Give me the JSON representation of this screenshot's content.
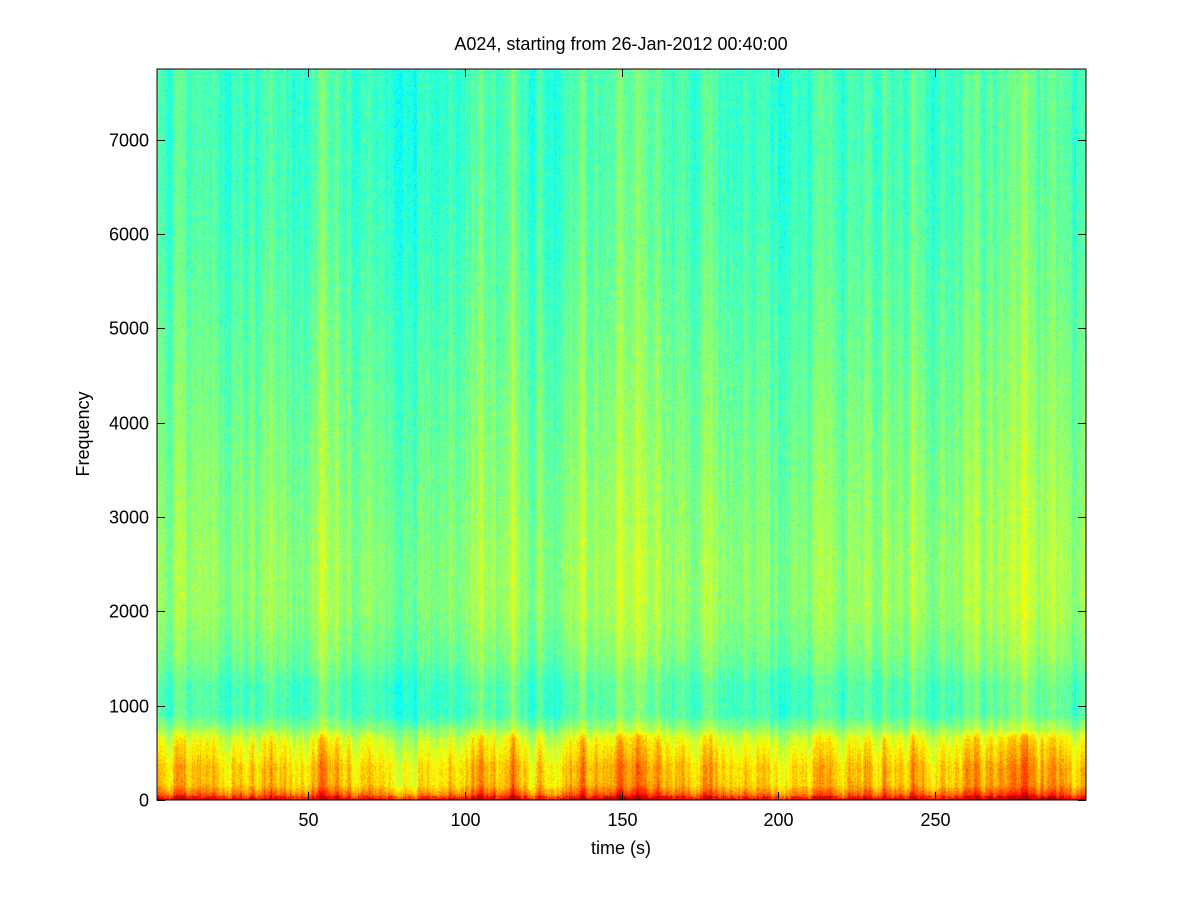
{
  "chart_data": {
    "type": "heatmap",
    "title": "A024, starting from 26-Jan-2012 00:40:00",
    "xlabel": "time (s)",
    "ylabel": "Frequency",
    "xlim": [
      2,
      298
    ],
    "ylim": [
      0,
      7750
    ],
    "x_ticks": [
      50,
      100,
      150,
      200,
      250
    ],
    "y_ticks": [
      0,
      1000,
      2000,
      3000,
      4000,
      5000,
      6000,
      7000
    ],
    "grid": false,
    "legend": "none",
    "colormap": "jet",
    "colormap_stops": [
      "#00007f",
      "#0000ff",
      "#007fff",
      "#00ffff",
      "#7fff7f",
      "#ffff00",
      "#ff7f00",
      "#ff0000",
      "#7f0000"
    ],
    "intensity_profile": {
      "frequency": [
        0,
        60,
        150,
        250,
        350,
        450,
        550,
        650,
        750,
        900,
        1200,
        1500,
        2000,
        2500,
        3000,
        3500,
        4000,
        5000,
        6000,
        7000,
        7750
      ],
      "level": [
        0.88,
        0.78,
        0.7,
        0.69,
        0.69,
        0.66,
        0.64,
        0.61,
        0.53,
        0.46,
        0.46,
        0.5,
        0.53,
        0.53,
        0.52,
        0.51,
        0.5,
        0.48,
        0.46,
        0.45,
        0.45
      ]
    }
  }
}
